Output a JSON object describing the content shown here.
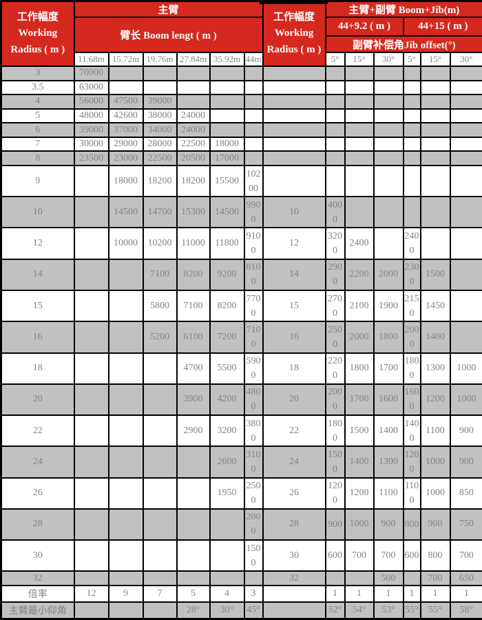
{
  "colors": {
    "header_bg": "#d5281e",
    "header_text": "#ffffff",
    "row_shaded_bg": "#c1c1c1",
    "row_plain_bg": "#ffffff",
    "cell_text": "#848484",
    "border": "#000000"
  },
  "header": {
    "working_radius_left": {
      "zh": "工作幅度",
      "en1": "Working",
      "en2": "Radius ( m )"
    },
    "main_boom_title": "主臂",
    "boom_length_title": "臂长 Boom lengt ( m )",
    "boom_lengths": [
      "11.68m",
      "15.72m",
      "19.76m",
      "27.84m",
      "35.92m",
      "44m"
    ],
    "working_radius_mid": {
      "zh": "工作幅度",
      "en1": "Working",
      "en2": "Radius ( m )"
    },
    "boom_jib_title": "主臂+副臂 Boom+Jib(m)",
    "jib_configs": [
      "44+9.2 ( m )",
      "44+15 ( m )"
    ],
    "jib_offset_title": "副臂补偿角Jib offset(°)",
    "jib_angles": [
      "5°",
      "15°",
      "30°",
      "5°",
      "15°",
      "30°"
    ]
  },
  "rows": [
    {
      "radius": "3",
      "boom": [
        "70000",
        "",
        "",
        "",
        "",
        ""
      ],
      "radius2": "",
      "jib": [
        "",
        "",
        "",
        "",
        "",
        ""
      ]
    },
    {
      "radius": "3.5",
      "boom": [
        "63000",
        "",
        "",
        "",
        "",
        ""
      ],
      "radius2": "",
      "jib": [
        "",
        "",
        "",
        "",
        "",
        ""
      ]
    },
    {
      "radius": "4",
      "boom": [
        "56000",
        "47500",
        "39000",
        "",
        "",
        ""
      ],
      "radius2": "",
      "jib": [
        "",
        "",
        "",
        "",
        "",
        ""
      ]
    },
    {
      "radius": "5",
      "boom": [
        "48000",
        "42600",
        "38000",
        "24000",
        "",
        ""
      ],
      "radius2": "",
      "jib": [
        "",
        "",
        "",
        "",
        "",
        ""
      ]
    },
    {
      "radius": "6",
      "boom": [
        "39000",
        "37000",
        "34000",
        "24000",
        "",
        ""
      ],
      "radius2": "",
      "jib": [
        "",
        "",
        "",
        "",
        "",
        ""
      ]
    },
    {
      "radius": "7",
      "boom": [
        "30000",
        "29000",
        "28000",
        "22500",
        "18000",
        ""
      ],
      "radius2": "",
      "jib": [
        "",
        "",
        "",
        "",
        "",
        ""
      ]
    },
    {
      "radius": "8",
      "boom": [
        "23500",
        "23000",
        "22500",
        "20500",
        "17000",
        ""
      ],
      "radius2": "",
      "jib": [
        "",
        "",
        "",
        "",
        "",
        ""
      ]
    },
    {
      "radius": "9",
      "boom": [
        "",
        "18000",
        "18200",
        "18200",
        "15500",
        "10200"
      ],
      "radius2": "",
      "jib": [
        "",
        "",
        "",
        "",
        "",
        ""
      ]
    },
    {
      "radius": "10",
      "boom": [
        "",
        "14500",
        "14700",
        "15300",
        "14500",
        "9900"
      ],
      "radius2": "10",
      "jib": [
        "4000",
        "",
        "",
        "",
        "",
        ""
      ]
    },
    {
      "radius": "12",
      "boom": [
        "",
        "10000",
        "10200",
        "11000",
        "11800",
        "9100"
      ],
      "radius2": "12",
      "jib": [
        "3200",
        "2400",
        "",
        "2400",
        "",
        ""
      ]
    },
    {
      "radius": "14",
      "boom": [
        "",
        "",
        "7100",
        "8200",
        "9200",
        "8100"
      ],
      "radius2": "14",
      "jib": [
        "2900",
        "2200",
        "2000",
        "2300",
        "1500",
        ""
      ]
    },
    {
      "radius": "15",
      "boom": [
        "",
        "",
        "5800",
        "7100",
        "8200",
        "7700"
      ],
      "radius2": "15",
      "jib": [
        "2700",
        "2100",
        "1900",
        "2150",
        "1450",
        ""
      ]
    },
    {
      "radius": "16",
      "boom": [
        "",
        "",
        "5200",
        "6100",
        "7200",
        "7100"
      ],
      "radius2": "16",
      "jib": [
        "2500",
        "2000",
        "1800",
        "2000",
        "1400",
        ""
      ]
    },
    {
      "radius": "18",
      "boom": [
        "",
        "",
        "",
        "4700",
        "5500",
        "5900"
      ],
      "radius2": "18",
      "jib": [
        "2200",
        "1800",
        "1700",
        "1800",
        "1300",
        "1000"
      ]
    },
    {
      "radius": "20",
      "boom": [
        "",
        "",
        "",
        "3900",
        "4200",
        "4800"
      ],
      "radius2": "20",
      "jib": [
        "2000",
        "1700",
        "1600",
        "1600",
        "1200",
        "1000"
      ]
    },
    {
      "radius": "22",
      "boom": [
        "",
        "",
        "",
        "2900",
        "3200",
        "3800"
      ],
      "radius2": "22",
      "jib": [
        "1800",
        "1500",
        "1400",
        "1400",
        "1100",
        "900"
      ]
    },
    {
      "radius": "24",
      "boom": [
        "",
        "",
        "",
        "",
        "2600",
        "3100"
      ],
      "radius2": "24",
      "jib": [
        "1500",
        "1400",
        "1300",
        "1200",
        "1000",
        "900"
      ]
    },
    {
      "radius": "26",
      "boom": [
        "",
        "",
        "",
        "",
        "1950",
        "2500"
      ],
      "radius2": "26",
      "jib": [
        "1200",
        "1200",
        "1100",
        "1100",
        "1000",
        "850"
      ]
    },
    {
      "radius": "28",
      "boom": [
        "",
        "",
        "",
        "",
        "",
        "2000"
      ],
      "radius2": "28",
      "jib": [
        "900",
        "1000",
        "900",
        "800",
        "900",
        "750"
      ]
    },
    {
      "radius": "30",
      "boom": [
        "",
        "",
        "",
        "",
        "",
        "1500"
      ],
      "radius2": "30",
      "jib": [
        "600",
        "700",
        "700",
        "600",
        "800",
        "700"
      ]
    },
    {
      "radius": "32",
      "boom": [
        "",
        "",
        "",
        "",
        "",
        ""
      ],
      "radius2": "32",
      "jib": [
        "",
        "",
        "500",
        "",
        "700",
        "650"
      ]
    }
  ],
  "footer_rows": [
    {
      "label": "倍率",
      "boom": [
        "12",
        "9",
        "7",
        "5",
        "4",
        "3"
      ],
      "radius2": "",
      "jib": [
        "1",
        "1",
        "1",
        "1",
        "1",
        "1"
      ]
    },
    {
      "label": "主臂最小仰角",
      "boom": [
        "",
        "",
        "",
        "28°",
        "30°",
        "45°"
      ],
      "radius2": "",
      "jib": [
        "52°",
        "54°",
        "53°",
        "55°",
        "55°",
        "58°"
      ]
    }
  ]
}
